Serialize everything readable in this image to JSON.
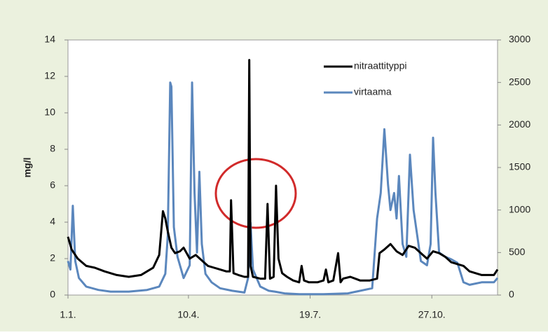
{
  "chart_data": {
    "type": "line",
    "y_label": "mg/l",
    "xlim": [
      0,
      353
    ],
    "xticks": [
      {
        "value": 0,
        "label": "1.1."
      },
      {
        "value": 99,
        "label": "10.4."
      },
      {
        "value": 199,
        "label": "19.7."
      },
      {
        "value": 299,
        "label": "27.10."
      }
    ],
    "ylim": [
      0,
      14
    ],
    "yticks": [
      0,
      2,
      4,
      6,
      8,
      10,
      12,
      14
    ],
    "y2lim": [
      0,
      3000
    ],
    "y2ticks": [
      0,
      500,
      1000,
      1500,
      2000,
      2500,
      3000
    ],
    "grid": false,
    "legend": "top-right",
    "series": [
      {
        "name": "nitraattityppi",
        "color": "#000000",
        "x": [
          0,
          3,
          8,
          15,
          22,
          30,
          40,
          50,
          60,
          65,
          70,
          75,
          78,
          80,
          82,
          85,
          88,
          92,
          95,
          100,
          105,
          110,
          115,
          120,
          125,
          130,
          133,
          134,
          136,
          140,
          145,
          148,
          149,
          150,
          152,
          158,
          162,
          164,
          166,
          169,
          171,
          173,
          176,
          180,
          185,
          190,
          192,
          194,
          198,
          205,
          210,
          212,
          214,
          218,
          222,
          224,
          226,
          232,
          240,
          248,
          254,
          256,
          260,
          265,
          270,
          275,
          280,
          285,
          290,
          295,
          300,
          305,
          310,
          315,
          320,
          325,
          330,
          335,
          340,
          345,
          350,
          353
        ],
        "values": [
          3.2,
          2.5,
          2.0,
          1.6,
          1.5,
          1.3,
          1.1,
          1.0,
          1.1,
          1.3,
          1.5,
          2.2,
          4.6,
          4.2,
          3.5,
          2.6,
          2.3,
          2.4,
          2.6,
          2.0,
          2.2,
          1.9,
          1.6,
          1.5,
          1.4,
          1.3,
          1.3,
          5.2,
          1.2,
          1.1,
          1.0,
          1.0,
          12.9,
          1.6,
          1.0,
          0.9,
          0.9,
          5.0,
          0.9,
          1.0,
          6.0,
          2.0,
          1.2,
          1.0,
          0.8,
          0.7,
          1.6,
          0.8,
          0.7,
          0.7,
          0.8,
          1.4,
          0.7,
          0.8,
          2.3,
          0.7,
          0.9,
          1.0,
          0.8,
          0.8,
          0.9,
          2.3,
          2.5,
          2.8,
          2.4,
          2.2,
          2.7,
          2.6,
          2.3,
          2.0,
          2.4,
          2.3,
          2.1,
          1.8,
          1.7,
          1.6,
          1.3,
          1.2,
          1.1,
          1.1,
          1.1,
          1.4
        ]
      },
      {
        "name": "virtaama",
        "color": "#5b87bd",
        "axis": "y2",
        "x": [
          0,
          2,
          4,
          6,
          9,
          15,
          25,
          35,
          50,
          65,
          75,
          80,
          82,
          84,
          85,
          87,
          90,
          95,
          100,
          102,
          104,
          106,
          108,
          110,
          113,
          118,
          125,
          135,
          145,
          148,
          150,
          152,
          158,
          165,
          170,
          178,
          190,
          210,
          230,
          250,
          254,
          257,
          260,
          263,
          265,
          268,
          270,
          272,
          275,
          278,
          281,
          284,
          287,
          290,
          295,
          298,
          300,
          302,
          305,
          310,
          315,
          320,
          325,
          330,
          340,
          350,
          353
        ],
        "values": [
          400,
          300,
          1050,
          400,
          200,
          100,
          60,
          40,
          40,
          60,
          100,
          250,
          700,
          2500,
          2450,
          800,
          450,
          200,
          350,
          2500,
          1200,
          500,
          1450,
          600,
          250,
          150,
          80,
          50,
          30,
          200,
          850,
          300,
          100,
          50,
          40,
          20,
          10,
          10,
          20,
          80,
          900,
          1200,
          1950,
          1300,
          1000,
          1200,
          900,
          1400,
          600,
          450,
          1650,
          1000,
          700,
          400,
          350,
          600,
          1850,
          1200,
          500,
          450,
          420,
          380,
          150,
          120,
          150,
          150,
          200
        ]
      }
    ]
  }
}
